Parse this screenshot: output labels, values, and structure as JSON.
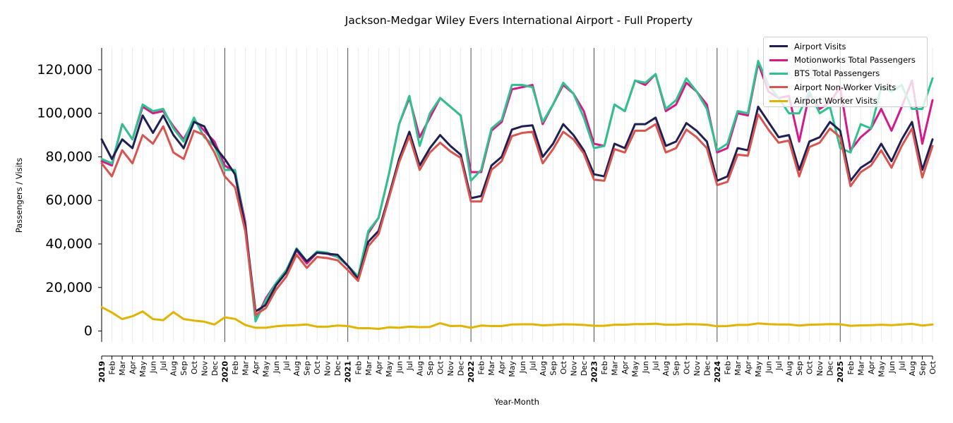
{
  "chart_data": {
    "type": "line",
    "title": "Jackson-Medgar Wiley Evers International Airport - Full Property",
    "xlabel": "Year-Month",
    "ylabel": "Passengers / Visits",
    "ylim": [
      -5000,
      130000
    ],
    "y_ticks": [
      0,
      20000,
      40000,
      60000,
      80000,
      100000,
      120000
    ],
    "y_tick_labels": [
      "0",
      "20,000",
      "40,000",
      "60,000",
      "80,000",
      "100,000",
      "120,000"
    ],
    "x_tick_labels": [
      "2019",
      "Feb",
      "Mar",
      "Apr",
      "May",
      "Jun",
      "Jul",
      "Aug",
      "Sep",
      "Oct",
      "Nov",
      "Dec",
      "2020",
      "Feb",
      "Mar",
      "Apr",
      "May",
      "Jun",
      "Jul",
      "Aug",
      "Sep",
      "Oct",
      "Nov",
      "Dec",
      "2021",
      "Feb",
      "Mar",
      "Apr",
      "May",
      "Jun",
      "Jul",
      "Aug",
      "Sep",
      "Oct",
      "Nov",
      "Dec",
      "2022",
      "Feb",
      "Mar",
      "Apr",
      "May",
      "Jun",
      "Jul",
      "Aug",
      "Sep",
      "Oct",
      "Nov",
      "Dec",
      "2023",
      "Feb",
      "Mar",
      "Apr",
      "May",
      "Jun",
      "Jul",
      "Aug",
      "Sep",
      "Oct",
      "Nov",
      "Dec",
      "2024",
      "Feb",
      "Mar",
      "Apr",
      "May",
      "Jun",
      "Jul",
      "Aug",
      "Sep",
      "Oct",
      "Nov",
      "Dec",
      "2025",
      "Feb",
      "Mar",
      "Apr",
      "May",
      "Jun",
      "Jul",
      "Aug",
      "Sep",
      "Oct"
    ],
    "legend_position": "top-right",
    "grid": "vertical lines at each month; darker lines at each year start",
    "series": [
      {
        "name": "Motionworks Total Passengers",
        "color": "#d6198a",
        "values": [
          78000,
          76000,
          95000,
          88000,
          103000,
          100000,
          101000,
          94000,
          88000,
          97000,
          92000,
          87000,
          76000,
          73000,
          50000,
          5000,
          15000,
          22000,
          28000,
          37000,
          31000,
          36000,
          35500,
          34000,
          30000,
          25000,
          45000,
          52000,
          72000,
          95000,
          107000,
          89000,
          98000,
          107000,
          103000,
          99000,
          73000,
          73000,
          92000,
          96000,
          111000,
          112000,
          113000,
          95000,
          104000,
          113000,
          109000,
          101000,
          86000,
          85000,
          104000,
          101000,
          115000,
          113000,
          118000,
          101000,
          104000,
          114000,
          110000,
          104000,
          82000,
          84000,
          100000,
          99000,
          123000,
          110000,
          107000,
          108000,
          87000,
          109000,
          102000,
          105000,
          112000,
          83000,
          89000,
          93000,
          102000,
          92000,
          103000,
          115000,
          86000,
          106000
        ]
      },
      {
        "name": "BTS Total Passengers",
        "color": "#2ec38e",
        "values": [
          79000,
          77000,
          95000,
          88000,
          104000,
          101000,
          102000,
          93000,
          87000,
          98000,
          89000,
          85000,
          74000,
          74000,
          48000,
          4500,
          14000,
          22000,
          28000,
          38000,
          32000,
          36500,
          36000,
          34000,
          30000,
          25000,
          46000,
          52000,
          72000,
          95000,
          108000,
          85000,
          100000,
          107000,
          103000,
          99000,
          69000,
          74000,
          93000,
          97000,
          113000,
          113000,
          112000,
          96000,
          104000,
          114000,
          109000,
          98000,
          84000,
          85000,
          104000,
          101000,
          115000,
          114000,
          118000,
          102000,
          106000,
          116000,
          110000,
          102000,
          83000,
          86000,
          101000,
          100000,
          124000,
          113000,
          107000,
          100000,
          100000,
          110000,
          100000,
          103000,
          84000,
          82000,
          95000,
          93000,
          112000,
          110000,
          113000,
          102000,
          102000,
          116000
        ]
      },
      {
        "name": "Airport Visits",
        "color": "#1f1f52",
        "values": [
          88000,
          79000,
          88000,
          84000,
          99000,
          91000,
          99000,
          90000,
          84000,
          96000,
          94000,
          85000,
          79000,
          72000,
          48000,
          9000,
          12000,
          21000,
          27000,
          37500,
          32000,
          36000,
          35500,
          35000,
          30000,
          24000,
          41000,
          46000,
          62000,
          79000,
          91500,
          76000,
          84000,
          90000,
          85000,
          81000,
          61000,
          62000,
          76000,
          80000,
          92500,
          94000,
          94500,
          80000,
          86000,
          95000,
          90000,
          83000,
          72000,
          71000,
          86000,
          84000,
          95000,
          95000,
          98000,
          85000,
          87000,
          95500,
          92000,
          87000,
          69000,
          71000,
          84000,
          83000,
          103000,
          96000,
          89000,
          90000,
          74000,
          87000,
          89000,
          96000,
          92000,
          69000,
          75000,
          78000,
          86000,
          78000,
          88000,
          96000,
          74000,
          88000
        ]
      },
      {
        "name": "Airport Non-Worker Visits",
        "color": "#d9534f",
        "values": [
          77000,
          71000,
          83000,
          77000,
          90000,
          86000,
          94000,
          82000,
          79000,
          92000,
          90000,
          82000,
          71000,
          66000,
          46000,
          7500,
          10500,
          19000,
          25000,
          35000,
          29000,
          34000,
          33500,
          32500,
          28000,
          23000,
          39000,
          44500,
          61000,
          77500,
          89500,
          74000,
          82000,
          86500,
          82500,
          79500,
          59500,
          59500,
          74000,
          78000,
          89500,
          91000,
          91500,
          77000,
          83500,
          91500,
          88000,
          81500,
          69500,
          69000,
          83500,
          82000,
          92000,
          92000,
          95000,
          82000,
          84000,
          92500,
          89000,
          84000,
          67000,
          68500,
          81000,
          80500,
          99500,
          92500,
          86500,
          87500,
          71000,
          84500,
          86500,
          93000,
          89000,
          66500,
          73000,
          76000,
          83000,
          75000,
          85000,
          93000,
          70500,
          85000
        ]
      },
      {
        "name": "Airport Worker Visits",
        "color": "#e0b400",
        "values": [
          11000,
          8500,
          5500,
          6800,
          9000,
          5500,
          5000,
          8700,
          5500,
          4800,
          4300,
          3000,
          6300,
          5600,
          2800,
          1500,
          1500,
          2200,
          2500,
          2700,
          3000,
          2000,
          2000,
          2500,
          2300,
          1300,
          1300,
          1000,
          1700,
          1500,
          2000,
          1800,
          1900,
          3600,
          2300,
          2400,
          1500,
          2500,
          2300,
          2300,
          3000,
          3100,
          3100,
          2600,
          2800,
          3100,
          3000,
          2800,
          2400,
          2400,
          2900,
          2900,
          3200,
          3200,
          3400,
          2900,
          2900,
          3200,
          3100,
          2900,
          2200,
          2300,
          2800,
          2800,
          3500,
          3200,
          3000,
          3000,
          2500,
          2900,
          3000,
          3200,
          3100,
          2400,
          2600,
          2700,
          2900,
          2700,
          3000,
          3300,
          2500,
          3000
        ]
      }
    ]
  }
}
